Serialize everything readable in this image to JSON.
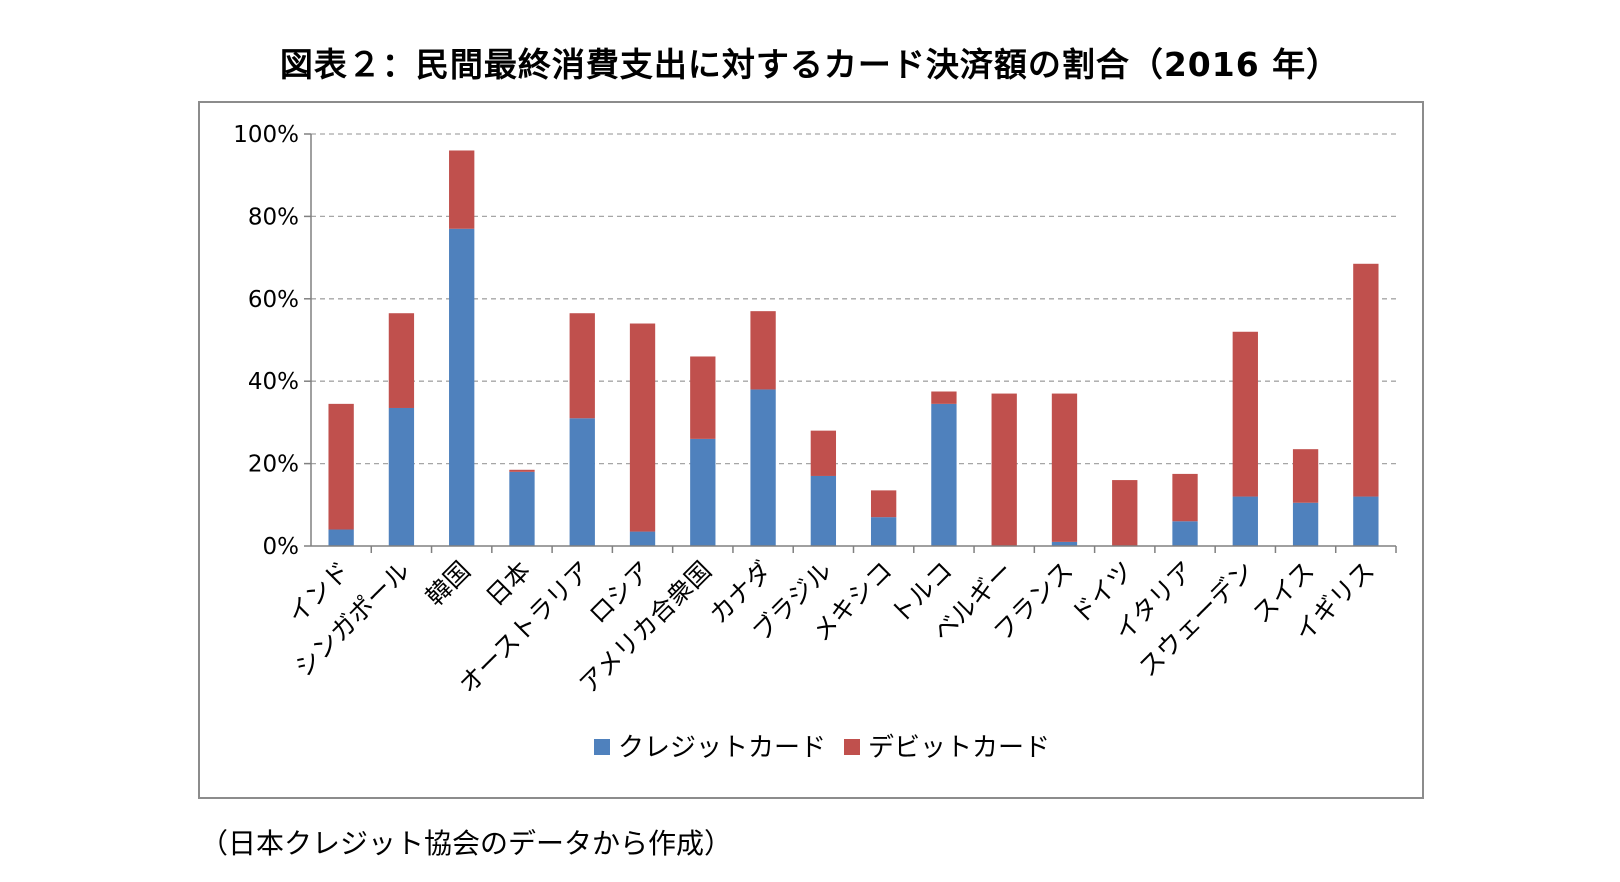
{
  "title": "図表２：民間最終消費支出に対するカード決済額の割合（2016 年）",
  "source_note": "（日本クレジット協会のデータから作成）",
  "colors": {
    "credit": "#4f81bd",
    "debit": "#c0504d",
    "grid": "#a6a6a6",
    "axis": "#808080",
    "frame": "#8c8c8c"
  },
  "chart_data": {
    "type": "bar",
    "stacked": true,
    "categories": [
      "インド",
      "シンガポール",
      "韓国",
      "日本",
      "オーストラリア",
      "ロシア",
      "アメリカ合衆国",
      "カナダ",
      "ブラジル",
      "メキシコ",
      "トルコ",
      "ベルギー",
      "フランス",
      "ドイツ",
      "イタリア",
      "スウェーデン",
      "スイス",
      "イギリス"
    ],
    "series": [
      {
        "name": "クレジットカード",
        "color": "#4f81bd",
        "values": [
          4,
          33.5,
          77,
          18,
          31,
          3.5,
          26,
          38,
          17,
          7,
          34.5,
          0,
          1,
          0,
          6,
          12,
          10.5,
          12
        ]
      },
      {
        "name": "デビットカード",
        "color": "#c0504d",
        "values": [
          30.5,
          23,
          19,
          0.5,
          25.5,
          50.5,
          20,
          19,
          11,
          6.5,
          3,
          37,
          36,
          16,
          11.5,
          40,
          13,
          56.5
        ]
      }
    ],
    "yticks": [
      "0%",
      "20%",
      "40%",
      "60%",
      "80%",
      "100%"
    ],
    "ylim": [
      0,
      100
    ],
    "grid": true,
    "legend_position": "bottom"
  }
}
